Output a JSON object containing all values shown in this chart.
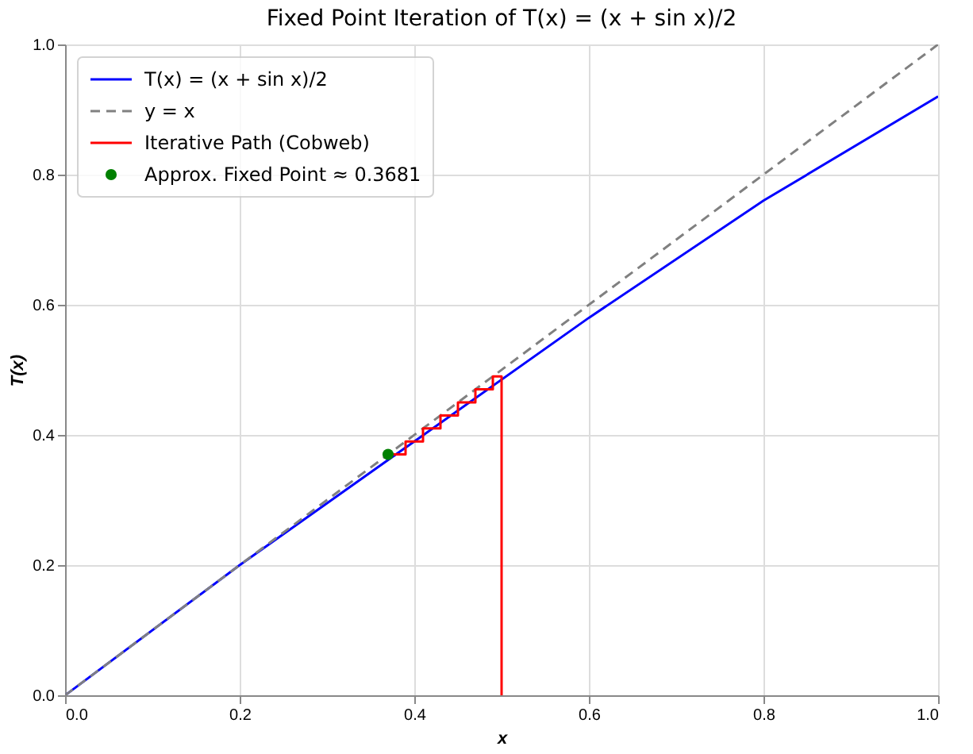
{
  "chart_data": {
    "type": "line",
    "title": "Fixed Point Iteration of T(x) = (x + sin x)/2",
    "xlabel": "x",
    "ylabel": "T(x)",
    "xlim": [
      0,
      1
    ],
    "ylim": [
      0,
      1
    ],
    "xticks": [
      {
        "value": 0,
        "label": "0.0"
      },
      {
        "value": 0.2,
        "label": "0.2"
      },
      {
        "value": 0.4,
        "label": "0.4"
      },
      {
        "value": 0.6,
        "label": "0.6"
      },
      {
        "value": 0.8,
        "label": "0.8"
      },
      {
        "value": 1,
        "label": "1.0"
      }
    ],
    "yticks": [
      {
        "value": 0,
        "label": "0.0"
      },
      {
        "value": 0.2,
        "label": "0.2"
      },
      {
        "value": 0.4,
        "label": "0.4"
      },
      {
        "value": 0.6,
        "label": "0.6"
      },
      {
        "value": 0.8,
        "label": "0.8"
      },
      {
        "value": 1,
        "label": "1.0"
      }
    ],
    "grid": true,
    "legend": "top left",
    "series": [
      {
        "name": "T(x) = (x + sin x)/2",
        "color": "#0000ff",
        "line_style": "solid",
        "x": [
          0,
          0.2,
          0.4,
          0.6,
          0.8,
          1
        ],
        "values": [
          0,
          0.2,
          0.39,
          0.58,
          0.76,
          0.92
        ]
      },
      {
        "name": "y = x",
        "color": "#808080",
        "line_style": "dashed",
        "x": [
          0,
          1
        ],
        "values": [
          0,
          1
        ]
      },
      {
        "name": "Iterative Path (Cobweb)",
        "color": "#ff0000",
        "line_style": "solid",
        "x": [
          0.5,
          0.5,
          0.49,
          0.49,
          0.47,
          0.47,
          0.45,
          0.45,
          0.43,
          0.43,
          0.41,
          0.41,
          0.39,
          0.39,
          0.37
        ],
        "values": [
          0,
          0.49,
          0.49,
          0.47,
          0.47,
          0.45,
          0.45,
          0.43,
          0.43,
          0.41,
          0.41,
          0.39,
          0.39,
          0.37,
          0.37
        ]
      },
      {
        "name": "Approx. Fixed Point ≈ 0.3681",
        "type": "scatter",
        "marker": "circle",
        "color": "#008000",
        "x": [
          0.37
        ],
        "values": [
          0.37
        ]
      }
    ]
  }
}
